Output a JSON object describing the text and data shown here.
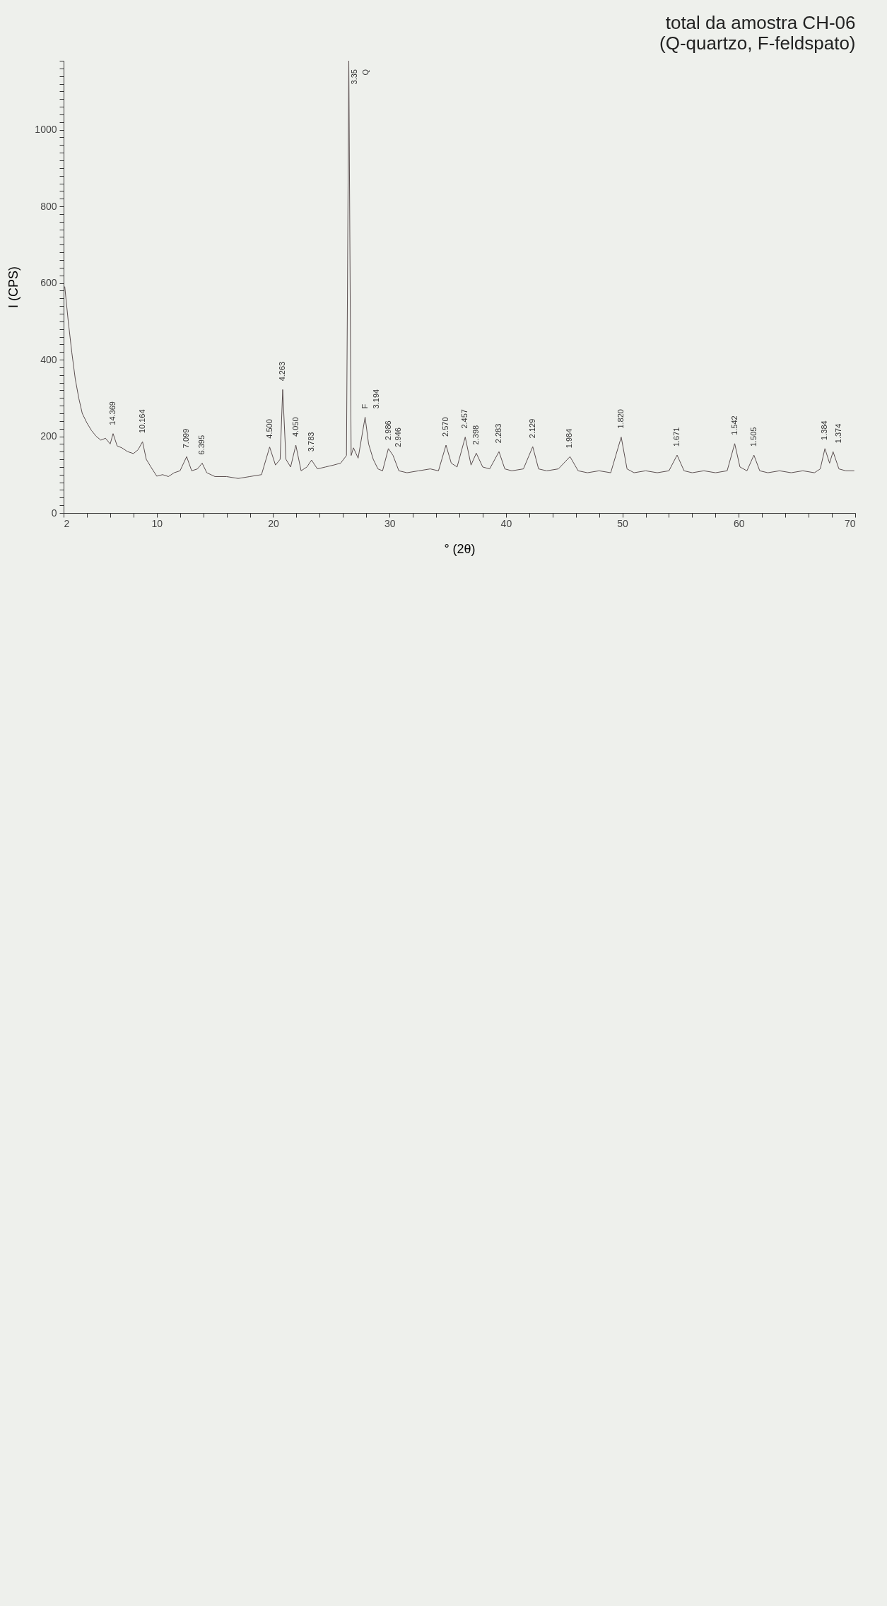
{
  "chart_data": {
    "type": "line",
    "title": "total da amostra CH-06",
    "subtitle": "(Q-quartzo, F-feldspato)",
    "xlabel": "° (2θ)",
    "ylabel": "I (CPS)",
    "xlim": [
      2,
      70
    ],
    "ylim": [
      0,
      1180
    ],
    "xticks": [
      2,
      {
        "value": 4,
        "label": null
      },
      {
        "value": 6,
        "label": null
      },
      {
        "value": 8,
        "label": null
      },
      10,
      {
        "value": 12,
        "label": null
      },
      {
        "value": 14,
        "label": null
      },
      {
        "value": 16,
        "label": null
      },
      {
        "value": 18,
        "label": null
      },
      20,
      {
        "value": 22,
        "label": null
      },
      {
        "value": 24,
        "label": null
      },
      {
        "value": 26,
        "label": null
      },
      {
        "value": 28,
        "label": null
      },
      30,
      {
        "value": 32,
        "label": null
      },
      {
        "value": 34,
        "label": null
      },
      {
        "value": 36,
        "label": null
      },
      {
        "value": 38,
        "label": null
      },
      40,
      {
        "value": 42,
        "label": null
      },
      {
        "value": 44,
        "label": null
      },
      {
        "value": 46,
        "label": null
      },
      {
        "value": 48,
        "label": null
      },
      50,
      {
        "value": 52,
        "label": null
      },
      {
        "value": 54,
        "label": null
      },
      {
        "value": 56,
        "label": null
      },
      {
        "value": 58,
        "label": null
      },
      60,
      {
        "value": 62,
        "label": null
      },
      {
        "value": 64,
        "label": null
      },
      {
        "value": 66,
        "label": null
      },
      {
        "value": 68,
        "label": null
      },
      70
    ],
    "yticks": [
      0,
      {
        "value": 20,
        "label": null
      },
      {
        "value": 40,
        "label": null
      },
      {
        "value": 60,
        "label": null
      },
      {
        "value": 80,
        "label": null
      },
      {
        "value": 100,
        "label": null
      },
      {
        "value": 120,
        "label": null
      },
      {
        "value": 140,
        "label": null
      },
      {
        "value": 160,
        "label": null
      },
      {
        "value": 180,
        "label": null
      },
      200,
      {
        "value": 220,
        "label": null
      },
      {
        "value": 240,
        "label": null
      },
      {
        "value": 260,
        "label": null
      },
      {
        "value": 280,
        "label": null
      },
      {
        "value": 300,
        "label": null
      },
      {
        "value": 320,
        "label": null
      },
      {
        "value": 340,
        "label": null
      },
      {
        "value": 360,
        "label": null
      },
      {
        "value": 380,
        "label": null
      },
      400,
      {
        "value": 420,
        "label": null
      },
      {
        "value": 440,
        "label": null
      },
      {
        "value": 460,
        "label": null
      },
      {
        "value": 480,
        "label": null
      },
      {
        "value": 500,
        "label": null
      },
      {
        "value": 520,
        "label": null
      },
      {
        "value": 540,
        "label": null
      },
      {
        "value": 560,
        "label": null
      },
      {
        "value": 580,
        "label": null
      },
      600,
      {
        "value": 620,
        "label": null
      },
      {
        "value": 640,
        "label": null
      },
      {
        "value": 660,
        "label": null
      },
      {
        "value": 680,
        "label": null
      },
      {
        "value": 700,
        "label": null
      },
      {
        "value": 720,
        "label": null
      },
      {
        "value": 740,
        "label": null
      },
      {
        "value": 760,
        "label": null
      },
      {
        "value": 780,
        "label": null
      },
      800,
      {
        "value": 820,
        "label": null
      },
      {
        "value": 840,
        "label": null
      },
      {
        "value": 860,
        "label": null
      },
      {
        "value": 880,
        "label": null
      },
      {
        "value": 900,
        "label": null
      },
      {
        "value": 920,
        "label": null
      },
      {
        "value": 940,
        "label": null
      },
      {
        "value": 960,
        "label": null
      },
      {
        "value": 980,
        "label": null
      },
      1000,
      {
        "value": 1020,
        "label": null
      },
      {
        "value": 1040,
        "label": null
      },
      {
        "value": 1060,
        "label": null
      },
      {
        "value": 1080,
        "label": null
      },
      {
        "value": 1100,
        "label": null
      },
      {
        "value": 1120,
        "label": null
      },
      {
        "value": 1140,
        "label": null
      },
      {
        "value": 1160,
        "label": null
      },
      {
        "value": 1180,
        "label": null
      }
    ],
    "grid": false,
    "marker": "none",
    "line_style": "solid",
    "series": [
      {
        "color": "#5b4f50",
        "x": [
          2.1,
          2.4,
          2.7,
          3.0,
          3.3,
          3.6,
          4.0,
          4.4,
          4.8,
          5.2,
          5.6,
          6.0,
          6.25,
          6.6,
          7.0,
          7.5,
          8.0,
          8.4,
          8.78,
          9.1,
          9.5,
          10.0,
          10.5,
          11.0,
          11.5,
          12.0,
          12.57,
          13.0,
          13.5,
          13.9,
          14.3,
          15.0,
          16.0,
          17.0,
          18.0,
          19.0,
          19.7,
          20.2,
          20.6,
          20.82,
          21.1,
          21.5,
          21.95,
          22.4,
          22.9,
          23.3,
          23.8,
          24.5,
          25.2,
          25.8,
          26.3,
          26.5,
          26.7,
          26.9,
          27.3,
          27.9,
          28.2,
          28.6,
          29.0,
          29.4,
          29.9,
          30.3,
          30.8,
          31.5,
          32.5,
          33.5,
          34.2,
          34.85,
          35.3,
          35.8,
          36.5,
          37.0,
          37.45,
          38.0,
          38.6,
          39.4,
          39.9,
          40.5,
          41.5,
          42.3,
          42.8,
          43.5,
          44.5,
          45.5,
          46.2,
          47.0,
          48.0,
          49.0,
          49.9,
          50.4,
          51.0,
          52.0,
          53.0,
          54.0,
          54.7,
          55.3,
          56.0,
          57.0,
          58.0,
          59.0,
          59.65,
          60.1,
          60.7,
          61.3,
          61.8,
          62.5,
          63.5,
          64.5,
          65.5,
          66.5,
          67.0,
          67.4,
          67.8,
          68.1,
          68.6,
          69.2,
          69.9
        ],
        "values": [
          590,
          500,
          420,
          350,
          300,
          260,
          235,
          215,
          200,
          190,
          195,
          180,
          207,
          175,
          170,
          160,
          155,
          165,
          186,
          140,
          120,
          96,
          100,
          95,
          105,
          110,
          147,
          110,
          115,
          130,
          105,
          95,
          95,
          90,
          95,
          100,
          172,
          125,
          140,
          322,
          140,
          120,
          177,
          110,
          120,
          138,
          115,
          120,
          125,
          130,
          150,
          1180,
          150,
          170,
          143,
          250,
          180,
          140,
          115,
          110,
          168,
          150,
          110,
          105,
          110,
          115,
          110,
          177,
          130,
          120,
          198,
          125,
          156,
          120,
          115,
          160,
          115,
          110,
          115,
          173,
          115,
          110,
          115,
          147,
          110,
          105,
          110,
          105,
          198,
          115,
          105,
          110,
          105,
          110,
          151,
          110,
          105,
          110,
          105,
          110,
          181,
          120,
          110,
          151,
          110,
          105,
          110,
          105,
          110,
          105,
          115,
          168,
          130,
          160,
          115,
          110,
          110
        ]
      }
    ],
    "annotations": [
      {
        "text": "14.369",
        "x": 6.25,
        "y": 207
      },
      {
        "text": "10.164",
        "x": 8.78,
        "y": 186
      },
      {
        "text": "7.099",
        "x": 12.57,
        "y": 147
      },
      {
        "text": "6.395",
        "x": 13.9,
        "y": 130
      },
      {
        "text": "4.500",
        "x": 19.7,
        "y": 172
      },
      {
        "text": "4.263",
        "x": 20.82,
        "y": 322
      },
      {
        "text": "4.050",
        "x": 21.95,
        "y": 177
      },
      {
        "text": "3.783",
        "x": 23.3,
        "y": 138
      },
      {
        "text": "3.35",
        "x": 26.5,
        "y": 1180
      },
      {
        "text": "Q",
        "x": 26.5,
        "y": 1180
      },
      {
        "text": "F",
        "x": 27.9,
        "y": 250
      },
      {
        "text": "3.194",
        "x": 27.9,
        "y": 250
      },
      {
        "text": "2.986",
        "x": 29.9,
        "y": 168
      },
      {
        "text": "2.946",
        "x": 30.3,
        "y": 150
      },
      {
        "text": "2.570",
        "x": 34.85,
        "y": 177
      },
      {
        "text": "2.457",
        "x": 36.5,
        "y": 198
      },
      {
        "text": "2.398",
        "x": 37.45,
        "y": 156
      },
      {
        "text": "2.283",
        "x": 39.4,
        "y": 160
      },
      {
        "text": "2.129",
        "x": 42.3,
        "y": 173
      },
      {
        "text": "1.984",
        "x": 45.5,
        "y": 147
      },
      {
        "text": "1.820",
        "x": 49.9,
        "y": 198
      },
      {
        "text": "1.671",
        "x": 54.7,
        "y": 151
      },
      {
        "text": "1.542",
        "x": 59.65,
        "y": 181
      },
      {
        "text": "1.505",
        "x": 61.3,
        "y": 151
      },
      {
        "text": "1.384",
        "x": 67.4,
        "y": 168
      },
      {
        "text": "1.374",
        "x": 68.1,
        "y": 160
      }
    ]
  }
}
